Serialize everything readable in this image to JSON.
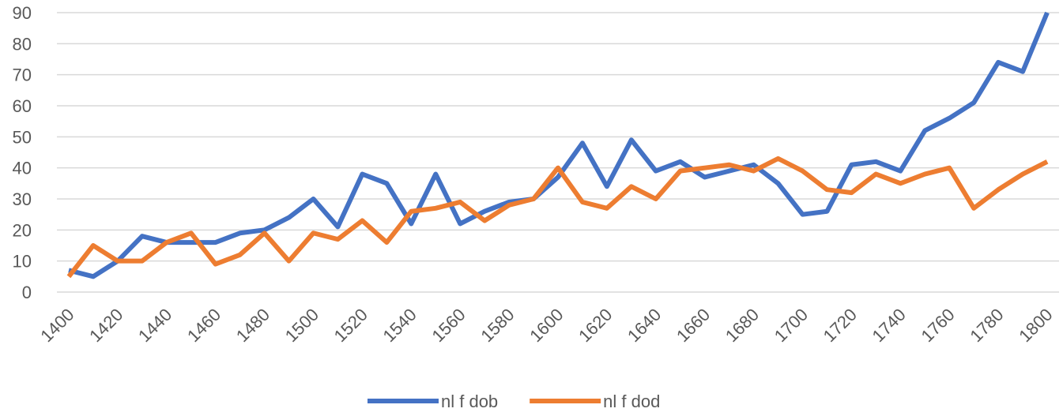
{
  "chart_data": {
    "type": "line",
    "x": [
      1400,
      1410,
      1420,
      1430,
      1440,
      1450,
      1460,
      1470,
      1480,
      1490,
      1500,
      1510,
      1520,
      1530,
      1540,
      1550,
      1560,
      1570,
      1580,
      1590,
      1600,
      1610,
      1620,
      1630,
      1640,
      1650,
      1660,
      1670,
      1680,
      1690,
      1700,
      1710,
      1720,
      1730,
      1740,
      1750,
      1760,
      1770,
      1780,
      1790,
      1800
    ],
    "series": [
      {
        "name": "nl f dob",
        "color": "#4472c4",
        "values": [
          7,
          5,
          10,
          18,
          16,
          16,
          16,
          19,
          20,
          24,
          30,
          21,
          38,
          35,
          22,
          38,
          22,
          26,
          29,
          30,
          37,
          48,
          34,
          49,
          39,
          42,
          37,
          39,
          41,
          35,
          25,
          26,
          41,
          42,
          39,
          52,
          56,
          61,
          74,
          71,
          90
        ]
      },
      {
        "name": "nl f dod",
        "color": "#ed7d31",
        "values": [
          5,
          15,
          10,
          10,
          16,
          19,
          9,
          12,
          19,
          10,
          19,
          17,
          23,
          16,
          26,
          27,
          29,
          23,
          28,
          30,
          40,
          29,
          27,
          34,
          30,
          39,
          40,
          41,
          39,
          43,
          39,
          33,
          32,
          38,
          35,
          38,
          40,
          27,
          33,
          38,
          42
        ]
      }
    ],
    "xlim": [
      1400,
      1800
    ],
    "xticks": [
      1400,
      1420,
      1440,
      1460,
      1480,
      1500,
      1520,
      1540,
      1560,
      1580,
      1600,
      1620,
      1640,
      1660,
      1680,
      1700,
      1720,
      1740,
      1760,
      1780,
      1800
    ],
    "ylim": [
      0,
      90
    ],
    "yticks": [
      0,
      10,
      20,
      30,
      40,
      50,
      60,
      70,
      80,
      90
    ],
    "grid": true,
    "legend": "bottom"
  }
}
